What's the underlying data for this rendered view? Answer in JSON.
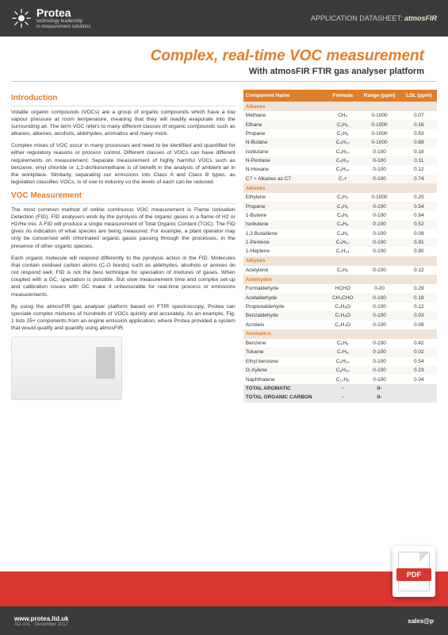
{
  "header": {
    "brand": "Protea",
    "tagline1": "technology leadership",
    "tagline2": "in measurement solutions",
    "datasheet_label": "APPLICATION DATASHEET:",
    "datasheet_name": "atmosFIR"
  },
  "title": "Complex, real-time VOC measurement",
  "subtitle": "With atmosFIR FTIR gas analyser platform",
  "sections": {
    "intro_head": "Introduction",
    "intro_p1": "Volatile organic compounds (VOCs) are a group of organic compounds which have a low vapour pressure at room temperature, meaning that they will readily evaporate into the surrounding air. The term VOC refers to many different classes of organic compounds such as alkanes, alkenes, alcohols, aldehydes, aromatics and many more.",
    "intro_p2": "Complex mixes of VOC occur in many processes and need to be identified and quantified for either regulatory reasons or process control. Different classes of VOCs can have different requirements on measurement. Separate measurement of highly harmful VOCs such as benzene, vinyl chloride or 1,2-dichloromethane is of benefit in the analysis of ambient air in the workplace. Similarly, separating our emissions into Class A and Class B types, as legislation classifies VOCs, is of use to industry so the levels of each can be reduced.",
    "voc_head": "VOC Measurement",
    "voc_p1": "The most common method of online continuous VOC measurement is Flame Ionisation Detection (FID). FID analysers work by the pyrolysis of the organic gases in a flame of H2 or H2/He mix. A FID will produce a single measurement of Total Organic Content (TOC). The FID gives no indication of what species are being measured. For example, a plant operator may only be concerned with chlorinated organic gases passing through the processes, in the presence of other organic species.",
    "voc_p2": "Each organic molecule will respond differently to the pyrolysis action in the FID. Molecules that contain oxidised carbon atoms (C-O bonds) such as aldehydes, alcohols or amines do not respond well. FID is not the best technique for speciation of mixtures of gases. When coupled with a GC, speciation is possible. But slow measurement time and complex set-up and calibration issues with GC make it unfavourable for real-time process or emissions measurements.",
    "voc_p3": "By using the atmosFIR gas analyser platform based on FTIR spectroscopy, Protea can speciate complex mixtures of hundreds of VOCs quickly and accurately. As an example, Fig. 1 lists 25+ components from an engine emission application, where Protea provided a system that would qualify and quantify using atmosFIR."
  },
  "table": {
    "headers": [
      "Component Name",
      "Formula",
      "Range (ppm)",
      "LDL (ppm)"
    ],
    "groups": [
      {
        "name": "Alkanes",
        "rows": [
          [
            "Methane",
            "CH₄",
            "0-1000",
            "0.07"
          ],
          [
            "Ethane",
            "C₂H₆",
            "0-1000",
            "0.16"
          ],
          [
            "Propane",
            "C₃H₈",
            "0-1000",
            "0.53"
          ],
          [
            "N-Butane",
            "C₄H₁₀",
            "0-1000",
            "0.69"
          ],
          [
            "Isobutane",
            "C₄H₁₀",
            "0-100",
            "0.18"
          ],
          [
            "N-Pentane",
            "C₅H₁₂",
            "0-100",
            "0.11"
          ],
          [
            "N-Hexane",
            "C₆H₁₄",
            "0-100",
            "0.12"
          ],
          [
            "C7 + Alkanes as C7",
            "C₇+",
            "0-100",
            "0.74"
          ]
        ]
      },
      {
        "name": "Alkenes",
        "rows": [
          [
            "Ethylene",
            "C₂H₄",
            "0-1000",
            "0.20"
          ],
          [
            "Propene",
            "C₃H₆",
            "0-100",
            "0.54"
          ],
          [
            "1-Butene",
            "C₄H₈",
            "0-100",
            "0.84"
          ],
          [
            "Isobutene",
            "C₄H₈",
            "0-100",
            "0.52"
          ],
          [
            "1,3 Butadiene",
            "C₄H₆",
            "0-100",
            "0.09"
          ],
          [
            "1-Pentene",
            "C₅H₁₀",
            "0-100",
            "0.91"
          ],
          [
            "1-Heptene",
            "C₇H₁₄",
            "0-100",
            "0.90"
          ]
        ]
      },
      {
        "name": "Alkynes",
        "rows": [
          [
            "Acetylene",
            "C₂H₂",
            "0-100",
            "0.12"
          ]
        ]
      },
      {
        "name": "Aldehydes",
        "rows": [
          [
            "Formaldehyde",
            "HCHO",
            "0-20",
            "0.29"
          ],
          [
            "Acetaldehyde",
            "CH₃CHO",
            "0-100",
            "0.18"
          ],
          [
            "Propionaldehyde",
            "C₃H₆O",
            "0-100",
            "0.12"
          ],
          [
            "Benzaldehyde",
            "C₇H₆O",
            "0-100",
            "0.03"
          ],
          [
            "Acrolein",
            "C₃H₄O",
            "0-100",
            "0.06"
          ]
        ]
      },
      {
        "name": "Aromatics",
        "rows": [
          [
            "Benzene",
            "C₆H₆",
            "0-100",
            "0.42"
          ],
          [
            "Toluene",
            "C₇H₈",
            "0-100",
            "0.02"
          ],
          [
            "Ethyl benzene",
            "C₈H₁₀",
            "0-100",
            "0.54"
          ],
          [
            "O-Xylene",
            "C₈H₁₀",
            "0-100",
            "0.23"
          ],
          [
            "Naphthalene",
            "C₁₀H₈",
            "0-100",
            "0.04"
          ]
        ]
      }
    ],
    "totals": [
      [
        "TOTAL AROMATIC",
        "-",
        "0-",
        "  "
      ],
      [
        "TOTAL ORGANIC CARBON",
        "-",
        "0-",
        "  "
      ]
    ]
  },
  "footer": {
    "url": "www.protea.ltd.uk",
    "docref": "AD-101 : December 2017",
    "email": "sales@p",
    "pdf": "PDF"
  },
  "colors": {
    "accent": "#e07e2a",
    "header_bg": "#3a3a3a",
    "red": "#d9362f"
  }
}
